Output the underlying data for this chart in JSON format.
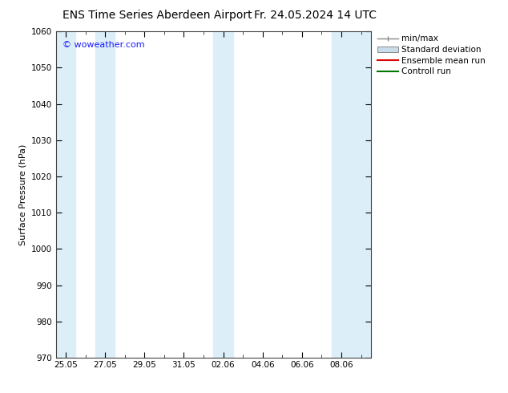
{
  "title_left": "ENS Time Series Aberdeen Airport",
  "title_right": "Fr. 24.05.2024 14 UTC",
  "ylabel": "Surface Pressure (hPa)",
  "ylim": [
    970,
    1060
  ],
  "yticks": [
    970,
    980,
    990,
    1000,
    1010,
    1020,
    1030,
    1040,
    1050,
    1060
  ],
  "xtick_labels": [
    "25.05",
    "27.05",
    "29.05",
    "31.05",
    "02.06",
    "04.06",
    "06.06",
    "08.06"
  ],
  "xtick_positions": [
    0,
    2,
    4,
    6,
    8,
    10,
    12,
    14
  ],
  "xlim": [
    -0.5,
    15.5
  ],
  "shaded_bands": [
    {
      "x_start": -0.5,
      "x_end": 0.5
    },
    {
      "x_start": 1.5,
      "x_end": 2.5
    },
    {
      "x_start": 7.5,
      "x_end": 8.5
    },
    {
      "x_start": 13.5,
      "x_end": 15.5
    }
  ],
  "shaded_color": "#dceef8",
  "watermark_text": "© woweather.com",
  "watermark_color": "#1a1aff",
  "legend_entries": [
    {
      "label": "min/max",
      "color": "#aaaaaa",
      "style": "minmax"
    },
    {
      "label": "Standard deviation",
      "color": "#c8dcea",
      "style": "box"
    },
    {
      "label": "Ensemble mean run",
      "color": "#dd0000",
      "style": "line"
    },
    {
      "label": "Controll run",
      "color": "#007700",
      "style": "line"
    }
  ],
  "title_fontsize": 10,
  "axis_label_fontsize": 8,
  "tick_fontsize": 7.5,
  "legend_fontsize": 7.5,
  "background_color": "#ffffff",
  "plot_bg_color": "#ffffff",
  "spine_color": "#444444",
  "minor_tick_positions": [
    1,
    3,
    5,
    7,
    9,
    11,
    13,
    15
  ]
}
